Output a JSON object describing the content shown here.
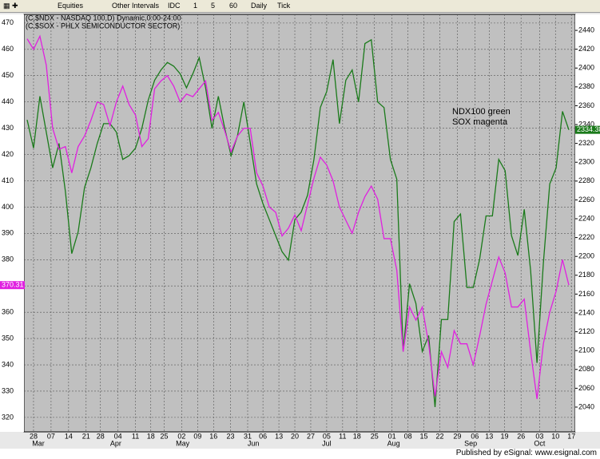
{
  "toolbar": {
    "items": [
      "Equities",
      "Other Intervals",
      "IDC",
      "1",
      "5",
      "60",
      "Daily",
      "Tick"
    ]
  },
  "chart_data": {
    "type": "line",
    "header": [
      "(C,$NDX - NASDAQ 100,D) Dynamic,0:00-24:00",
      "(C,$SOX - PHLX SEMICONDUCTOR SECTOR)"
    ],
    "annotation": [
      "NDX100 green",
      "SOX magenta"
    ],
    "xlim": [
      -0.5,
      86
    ],
    "xticks": [
      {
        "value": 1,
        "label": "28"
      },
      {
        "value": 3.75,
        "label": "07"
      },
      {
        "value": 6.5,
        "label": "14"
      },
      {
        "value": 9.25,
        "label": "21"
      },
      {
        "value": 11.5,
        "label": "28"
      },
      {
        "value": 14.25,
        "label": "04"
      },
      {
        "value": 17,
        "label": "11"
      },
      {
        "value": 19.4,
        "label": "18"
      },
      {
        "value": 21.5,
        "label": "25"
      },
      {
        "value": 24.25,
        "label": "02"
      },
      {
        "value": 26.75,
        "label": "09"
      },
      {
        "value": 29.25,
        "label": "16"
      },
      {
        "value": 31.9,
        "label": "23"
      },
      {
        "value": 34.6,
        "label": "31"
      },
      {
        "value": 37,
        "label": "06"
      },
      {
        "value": 39.5,
        "label": "13"
      },
      {
        "value": 42,
        "label": "20"
      },
      {
        "value": 44.5,
        "label": "27"
      },
      {
        "value": 47,
        "label": "05"
      },
      {
        "value": 49.5,
        "label": "11"
      },
      {
        "value": 51.75,
        "label": "18"
      },
      {
        "value": 54.5,
        "label": "25"
      },
      {
        "value": 57.25,
        "label": "01"
      },
      {
        "value": 59.75,
        "label": "08"
      },
      {
        "value": 62.25,
        "label": "15"
      },
      {
        "value": 64.75,
        "label": "22"
      },
      {
        "value": 67.5,
        "label": "29"
      },
      {
        "value": 70.25,
        "label": "06"
      },
      {
        "value": 72.5,
        "label": "13"
      },
      {
        "value": 74.9,
        "label": "19"
      },
      {
        "value": 77.5,
        "label": "26"
      },
      {
        "value": 80.4,
        "label": "03"
      },
      {
        "value": 82.9,
        "label": "10"
      },
      {
        "value": 85.4,
        "label": "17"
      }
    ],
    "month_labels": [
      {
        "value": 1.75,
        "label": "Mar"
      },
      {
        "value": 13.9,
        "label": "Apr"
      },
      {
        "value": 24.4,
        "label": "May"
      },
      {
        "value": 35.5,
        "label": "Jun"
      },
      {
        "value": 47,
        "label": "Jul"
      },
      {
        "value": 57.5,
        "label": "Aug"
      },
      {
        "value": 69.6,
        "label": "Sep"
      },
      {
        "value": 80.4,
        "label": "Oct"
      }
    ],
    "ylim": [
      314.5,
      473.3
    ],
    "yticks": [
      320,
      330,
      340,
      350,
      360,
      370,
      380,
      390,
      400,
      410,
      420,
      430,
      440,
      450,
      460,
      470
    ],
    "y2lim": [
      2013.7,
      2457
    ],
    "y2ticks": [
      2040,
      2060,
      2080,
      2100,
      2120,
      2140,
      2160,
      2180,
      2200,
      2220,
      2240,
      2260,
      2280,
      2300,
      2320,
      2340,
      2360,
      2380,
      2400,
      2420,
      2440
    ],
    "grid": true,
    "series": [
      {
        "name": "$NDX",
        "color": "#1a7a1a",
        "axis": "y2",
        "values": [
          2345,
          2315,
          2370,
          2332,
          2294,
          2320,
          2269,
          2203,
          2226,
          2273,
          2294,
          2320,
          2341,
          2341,
          2332,
          2303,
          2307,
          2315,
          2336,
          2366,
          2387,
          2398,
          2406,
          2402,
          2394,
          2379,
          2394,
          2411,
          2379,
          2336,
          2370,
          2336,
          2307,
          2328,
          2364,
          2321,
          2277,
          2256,
          2239,
          2222,
          2205,
          2196,
          2239,
          2247,
          2265,
          2303,
          2358,
          2375,
          2409,
          2341,
          2387,
          2398,
          2364,
          2426,
          2430,
          2364,
          2358,
          2303,
          2282,
          2099,
          2171,
          2150,
          2099,
          2116,
          2040,
          2133,
          2133,
          2237,
          2245,
          2167,
          2167,
          2197,
          2243,
          2243,
          2303,
          2291,
          2222,
          2201,
          2250,
          2185,
          2087,
          2193,
          2277,
          2294,
          2354,
          2334.38
        ]
      },
      {
        "name": "$SOX",
        "color": "#e020e0",
        "axis": "y",
        "values": [
          464,
          460,
          465,
          454,
          430,
          422,
          423,
          413,
          423,
          427,
          433,
          440,
          439,
          431,
          440,
          446,
          439,
          435,
          423,
          426,
          445,
          448,
          450,
          446,
          440,
          443,
          442,
          445,
          448,
          433,
          436,
          429,
          421,
          427,
          430,
          430,
          413,
          408,
          400,
          398,
          389,
          392,
          397,
          391,
          401,
          411,
          419,
          416,
          410,
          400,
          395,
          390,
          398,
          404,
          408,
          403,
          388,
          388,
          376,
          345,
          362,
          357,
          362,
          348,
          328,
          345,
          339,
          353,
          348,
          348,
          340,
          351,
          363,
          372,
          381,
          375,
          362,
          362,
          365,
          345,
          327,
          348,
          360,
          368,
          380,
          370.31
        ]
      }
    ]
  },
  "footer": "Published by eSignal: www.esignal.com"
}
